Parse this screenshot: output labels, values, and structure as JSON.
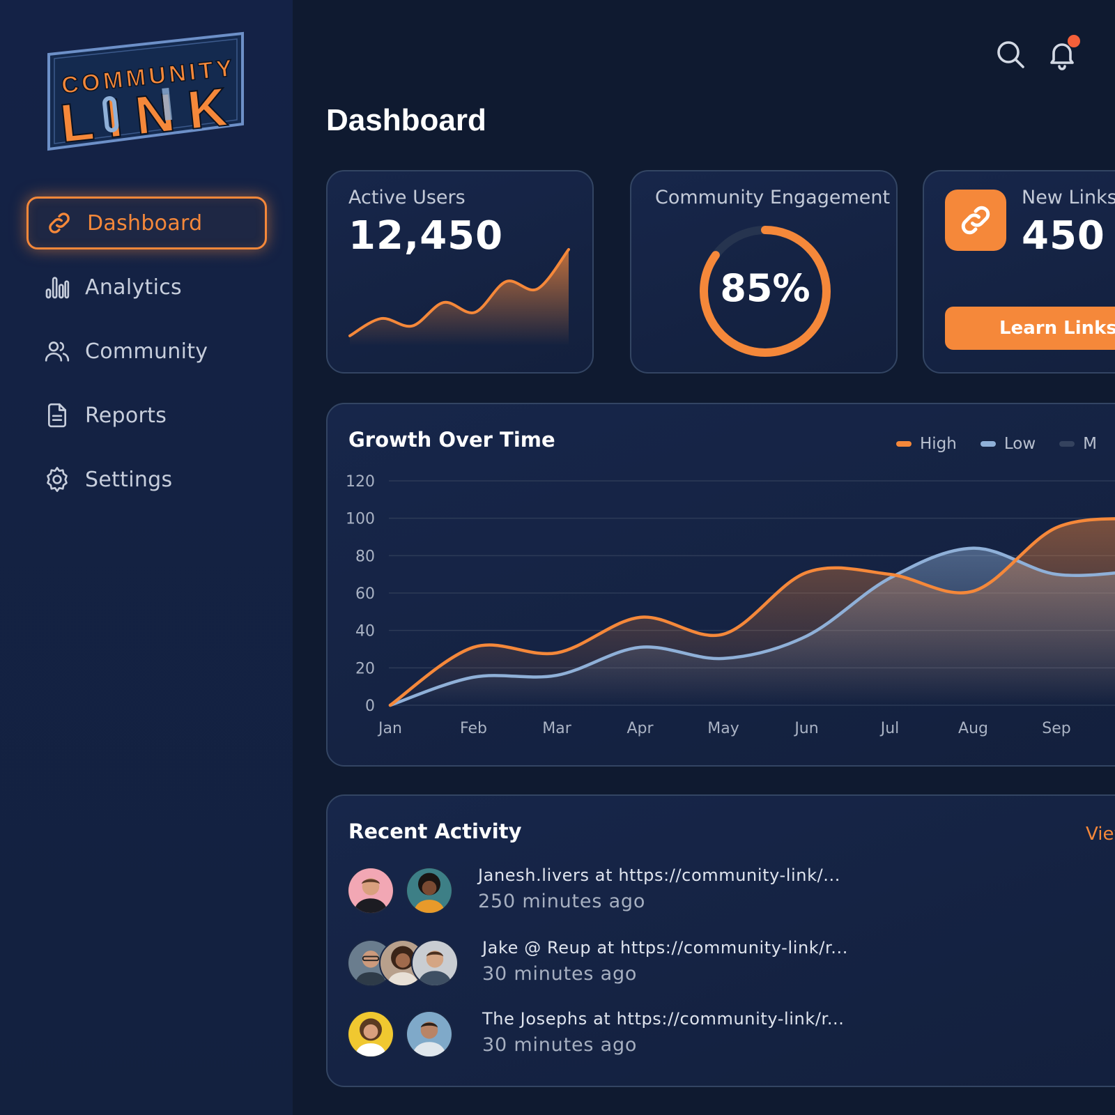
{
  "brand": {
    "line1": "COMMUNITY",
    "line2": "LINK"
  },
  "nav": [
    {
      "label": "Dashboard",
      "icon": "link-icon",
      "active": true
    },
    {
      "label": "Analytics",
      "icon": "bar-chart-icon"
    },
    {
      "label": "Community",
      "icon": "users-icon"
    },
    {
      "label": "Reports",
      "icon": "document-icon"
    },
    {
      "label": "Settings",
      "icon": "gear-icon"
    }
  ],
  "header": {
    "title": "Dashboard",
    "has_notification": true
  },
  "cards": {
    "active_users": {
      "label": "Active Users",
      "value": "12,450",
      "trend": [
        8,
        22,
        16,
        35,
        27,
        52,
        46,
        78
      ]
    },
    "engagement": {
      "label": "Community Engagement",
      "value": "85%",
      "progress": 0.85
    },
    "new_links": {
      "label": "New Links",
      "value": "450",
      "button": "Learn Links"
    }
  },
  "growth": {
    "title": "Growth Over Time",
    "legend": [
      {
        "name": "High",
        "color": "#f5883a"
      },
      {
        "name": "Low",
        "color": "#8fb0d8"
      },
      {
        "name": "M",
        "color": "#34425e"
      }
    ]
  },
  "chart_data": {
    "type": "area",
    "title": "Growth Over Time",
    "categories": [
      "Jan",
      "Feb",
      "Mar",
      "Apr",
      "May",
      "Jun",
      "Jul",
      "Aug",
      "Sep"
    ],
    "y_ticks": [
      0,
      20,
      40,
      60,
      80,
      100,
      120
    ],
    "ylim": [
      0,
      120
    ],
    "series": [
      {
        "name": "High",
        "color": "#f5883a",
        "values": [
          0,
          31,
          28,
          47,
          38,
          71,
          70,
          61,
          95
        ]
      },
      {
        "name": "Low",
        "color": "#8fb0d8",
        "values": [
          0,
          15,
          16,
          31,
          25,
          37,
          68,
          84,
          70
        ]
      }
    ],
    "legend_position": "top-right",
    "grid": true
  },
  "activity": {
    "title": "Recent Activity",
    "view_label": "View",
    "items": [
      {
        "text": "Janesh.livers at https://community-link/...",
        "time": "250 minutes ago"
      },
      {
        "text": "Jake @ Reup at https://community-link/r...",
        "time": "30 minutes ago"
      },
      {
        "text": "The Josephs at https://community-link/r...",
        "time": "30 minutes ago"
      }
    ]
  },
  "colors": {
    "accent": "#f5883a",
    "secondary": "#8fb0d8",
    "background": "#0f1a30",
    "sidebar": "#142246"
  }
}
